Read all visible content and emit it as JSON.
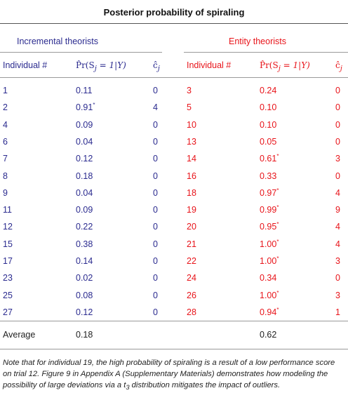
{
  "title": "Posterior probability of spiraling",
  "groups": {
    "incremental": "Incremental theorists",
    "entity": "Entity theorists"
  },
  "headers": {
    "individual": "Individual #",
    "prob": "P̂r(S",
    "prob_sub": "j",
    "prob_rest": " = 1|Y)",
    "c": "ĉ",
    "c_sub": "j"
  },
  "incremental_rows": [
    {
      "id": "1",
      "p": "0.11",
      "star": "",
      "c": "0"
    },
    {
      "id": "2",
      "p": "0.91",
      "star": "*",
      "c": "4"
    },
    {
      "id": "4",
      "p": "0.09",
      "star": "",
      "c": "0"
    },
    {
      "id": "6",
      "p": "0.04",
      "star": "",
      "c": "0"
    },
    {
      "id": "7",
      "p": "0.12",
      "star": "",
      "c": "0"
    },
    {
      "id": "8",
      "p": "0.18",
      "star": "",
      "c": "0"
    },
    {
      "id": "9",
      "p": "0.04",
      "star": "",
      "c": "0"
    },
    {
      "id": "11",
      "p": "0.09",
      "star": "",
      "c": "0"
    },
    {
      "id": "12",
      "p": "0.22",
      "star": "",
      "c": "0"
    },
    {
      "id": "15",
      "p": "0.38",
      "star": "",
      "c": "0"
    },
    {
      "id": "17",
      "p": "0.14",
      "star": "",
      "c": "0"
    },
    {
      "id": "23",
      "p": "0.02",
      "star": "",
      "c": "0"
    },
    {
      "id": "25",
      "p": "0.08",
      "star": "",
      "c": "0"
    },
    {
      "id": "27",
      "p": "0.12",
      "star": "",
      "c": "0"
    }
  ],
  "entity_rows": [
    {
      "id": "3",
      "p": "0.24",
      "star": "",
      "c": "0"
    },
    {
      "id": "5",
      "p": "0.10",
      "star": "",
      "c": "0"
    },
    {
      "id": "10",
      "p": "0.10",
      "star": "",
      "c": "0"
    },
    {
      "id": "13",
      "p": "0.05",
      "star": "",
      "c": "0"
    },
    {
      "id": "14",
      "p": "0.61",
      "star": "*",
      "c": "3"
    },
    {
      "id": "16",
      "p": "0.33",
      "star": "",
      "c": "0"
    },
    {
      "id": "18",
      "p": "0.97",
      "star": "*",
      "c": "4"
    },
    {
      "id": "19",
      "p": "0.99",
      "star": "*",
      "c": "9"
    },
    {
      "id": "20",
      "p": "0.95",
      "star": "*",
      "c": "4"
    },
    {
      "id": "21",
      "p": "1.00",
      "star": "*",
      "c": "4"
    },
    {
      "id": "22",
      "p": "1.00",
      "star": "*",
      "c": "3"
    },
    {
      "id": "24",
      "p": "0.34",
      "star": "",
      "c": "0"
    },
    {
      "id": "26",
      "p": "1.00",
      "star": "*",
      "c": "3"
    },
    {
      "id": "28",
      "p": "0.94",
      "star": "*",
      "c": "1"
    }
  ],
  "average": {
    "label": "Average",
    "incremental": "0.18",
    "entity": "0.62"
  },
  "note": "Note that for individual 19, the high probability of spiraling is a result of a low performance score on trial 12. Figure 9 in Appendix A (Supplementary Materials) demonstrates how modeling the possibility of large deviations via a t",
  "note_sub": "3",
  "note_end": " distribution mitigates the impact of outliers.",
  "colors": {
    "incremental": "#2b2b8f",
    "entity": "#e8141a"
  }
}
